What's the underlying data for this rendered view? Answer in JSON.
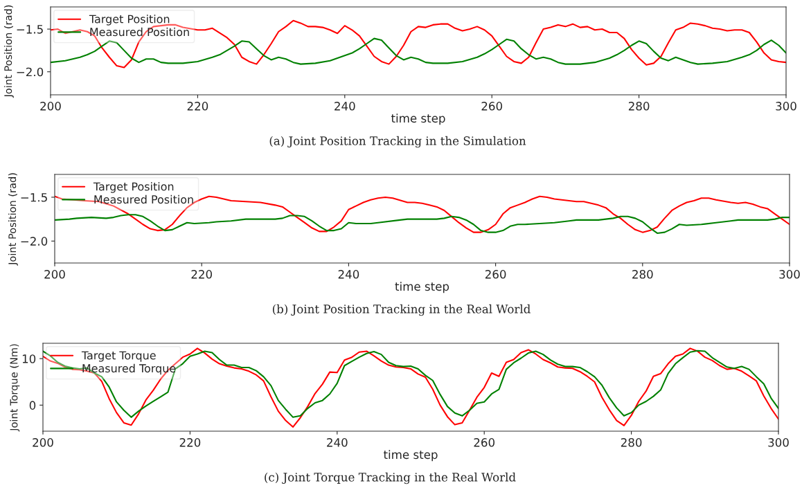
{
  "chart_data": [
    {
      "type": "line",
      "xlabel": "time step",
      "ylabel": "Joint Position (rad)",
      "annotations": [
        "(a) Joint Position Tracking in the Simulation"
      ],
      "xlim": [
        200,
        300
      ],
      "xticks": [
        200,
        220,
        240,
        260,
        280,
        300
      ],
      "ylim": [
        -2.27,
        -1.24
      ],
      "yticks": [
        -1.5,
        {
          "value": -2.0,
          "label": "−2.0"
        }
      ],
      "grid": false,
      "legend": "top left",
      "line_style": "solid",
      "marker": "none",
      "series": [
        {
          "name": "Target Position",
          "color": "#ff0000",
          "x": [
            200,
            201,
            202,
            204,
            205,
            206,
            207,
            208,
            209,
            210,
            211,
            212,
            213,
            214,
            216,
            217,
            218,
            220,
            221,
            222,
            224,
            225,
            226,
            227,
            228,
            229,
            230,
            231,
            232,
            233,
            234,
            235,
            236,
            237,
            238,
            239,
            240,
            241,
            242,
            243,
            244,
            245,
            246,
            247,
            248,
            249,
            250,
            251,
            252,
            253,
            254,
            255,
            256,
            257,
            258,
            259,
            260,
            261,
            262,
            263,
            264,
            265,
            266,
            267,
            268,
            269,
            270,
            271,
            272,
            273,
            274,
            275,
            276,
            277,
            278,
            279,
            280,
            281,
            282,
            283,
            284,
            285,
            286,
            287,
            288,
            289,
            290,
            291,
            292,
            293,
            294,
            295,
            296,
            297,
            298,
            299,
            300
          ],
          "values": [
            -1.51,
            -1.5,
            -1.55,
            -1.51,
            -1.53,
            -1.58,
            -1.72,
            -1.83,
            -1.93,
            -1.95,
            -1.86,
            -1.65,
            -1.53,
            -1.47,
            -1.45,
            -1.45,
            -1.48,
            -1.51,
            -1.51,
            -1.49,
            -1.6,
            -1.68,
            -1.83,
            -1.88,
            -1.91,
            -1.8,
            -1.67,
            -1.53,
            -1.47,
            -1.4,
            -1.43,
            -1.47,
            -1.47,
            -1.48,
            -1.51,
            -1.55,
            -1.46,
            -1.51,
            -1.58,
            -1.7,
            -1.82,
            -1.88,
            -1.91,
            -1.82,
            -1.69,
            -1.53,
            -1.47,
            -1.48,
            -1.45,
            -1.44,
            -1.44,
            -1.49,
            -1.52,
            -1.5,
            -1.47,
            -1.51,
            -1.58,
            -1.7,
            -1.82,
            -1.88,
            -1.9,
            -1.83,
            -1.66,
            -1.5,
            -1.48,
            -1.45,
            -1.47,
            -1.44,
            -1.48,
            -1.47,
            -1.51,
            -1.5,
            -1.54,
            -1.54,
            -1.61,
            -1.74,
            -1.84,
            -1.92,
            -1.9,
            -1.82,
            -1.66,
            -1.51,
            -1.48,
            -1.43,
            -1.44,
            -1.46,
            -1.49,
            -1.5,
            -1.52,
            -1.51,
            -1.51,
            -1.54,
            -1.65,
            -1.78,
            -1.86,
            -1.88,
            -1.89
          ]
        },
        {
          "name": "Measured Position",
          "color": "#008000",
          "x": [
            200,
            202,
            204,
            205,
            206,
            207,
            208,
            209,
            210,
            211,
            212,
            213,
            214,
            215,
            216,
            218,
            220,
            222,
            223,
            224,
            225,
            226,
            227,
            228,
            229,
            230,
            231,
            232,
            233,
            234,
            236,
            238,
            240,
            241,
            242,
            243,
            244,
            245,
            246,
            247,
            248,
            249,
            250,
            251,
            252,
            254,
            256,
            258,
            259,
            260,
            261,
            262,
            263,
            264,
            265,
            266,
            267,
            268,
            269,
            270,
            272,
            274,
            276,
            277,
            278,
            279,
            280,
            281,
            282,
            283,
            284,
            285,
            286,
            287,
            288,
            290,
            292,
            294,
            295,
            296,
            297,
            298,
            299,
            300
          ],
          "values": [
            -1.89,
            -1.87,
            -1.83,
            -1.8,
            -1.76,
            -1.7,
            -1.64,
            -1.66,
            -1.75,
            -1.84,
            -1.89,
            -1.85,
            -1.85,
            -1.89,
            -1.9,
            -1.9,
            -1.88,
            -1.83,
            -1.8,
            -1.75,
            -1.7,
            -1.64,
            -1.65,
            -1.73,
            -1.81,
            -1.86,
            -1.83,
            -1.85,
            -1.89,
            -1.91,
            -1.9,
            -1.87,
            -1.81,
            -1.78,
            -1.73,
            -1.67,
            -1.61,
            -1.63,
            -1.72,
            -1.81,
            -1.86,
            -1.83,
            -1.85,
            -1.89,
            -1.9,
            -1.9,
            -1.88,
            -1.83,
            -1.79,
            -1.74,
            -1.68,
            -1.62,
            -1.64,
            -1.73,
            -1.8,
            -1.85,
            -1.83,
            -1.85,
            -1.89,
            -1.91,
            -1.91,
            -1.89,
            -1.84,
            -1.8,
            -1.75,
            -1.69,
            -1.64,
            -1.67,
            -1.76,
            -1.84,
            -1.87,
            -1.83,
            -1.86,
            -1.89,
            -1.91,
            -1.9,
            -1.88,
            -1.83,
            -1.8,
            -1.75,
            -1.68,
            -1.63,
            -1.69,
            -1.78
          ]
        }
      ]
    },
    {
      "type": "line",
      "xlabel": "time step",
      "ylabel": "Joint Position (rad)",
      "annotations": [
        "(b) Joint Position Tracking in the Real World"
      ],
      "xlim": [
        200,
        300
      ],
      "xticks": [
        200,
        220,
        240,
        260,
        280,
        300
      ],
      "ylim": [
        -2.25,
        -1.24
      ],
      "yticks": [
        -1.5,
        {
          "value": -2.0,
          "label": "−2.0"
        }
      ],
      "grid": false,
      "legend": "top left",
      "line_style": "solid",
      "marker": "none",
      "series": [
        {
          "name": "Target Position",
          "color": "#ff0000",
          "x": [
            200,
            201,
            204,
            206,
            208,
            210,
            211,
            212,
            213,
            214,
            215,
            216,
            217,
            218,
            219,
            220,
            221,
            222,
            223,
            224,
            226,
            228,
            230,
            231,
            232,
            233,
            234,
            235,
            236,
            237,
            238,
            239,
            240,
            241,
            242,
            243,
            244,
            245,
            246,
            248,
            249,
            250,
            251,
            252,
            253,
            254,
            255,
            256,
            257,
            258,
            259,
            260,
            261,
            262,
            263,
            264,
            265,
            266,
            267,
            268,
            269,
            270,
            271,
            272,
            273,
            274,
            275,
            276,
            277,
            278,
            279,
            280,
            281,
            282,
            283,
            284,
            285,
            286,
            287,
            288,
            289,
            290,
            292,
            293,
            294,
            295,
            296,
            297,
            298,
            299,
            300
          ],
          "values": [
            -1.49,
            -1.52,
            -1.54,
            -1.55,
            -1.6,
            -1.69,
            -1.75,
            -1.81,
            -1.86,
            -1.88,
            -1.87,
            -1.81,
            -1.71,
            -1.62,
            -1.56,
            -1.52,
            -1.49,
            -1.5,
            -1.52,
            -1.54,
            -1.55,
            -1.56,
            -1.59,
            -1.61,
            -1.67,
            -1.73,
            -1.79,
            -1.85,
            -1.89,
            -1.89,
            -1.84,
            -1.77,
            -1.64,
            -1.6,
            -1.56,
            -1.53,
            -1.51,
            -1.5,
            -1.51,
            -1.56,
            -1.56,
            -1.57,
            -1.59,
            -1.61,
            -1.65,
            -1.72,
            -1.79,
            -1.85,
            -1.9,
            -1.9,
            -1.87,
            -1.81,
            -1.69,
            -1.62,
            -1.59,
            -1.56,
            -1.52,
            -1.49,
            -1.5,
            -1.52,
            -1.53,
            -1.54,
            -1.55,
            -1.55,
            -1.57,
            -1.59,
            -1.62,
            -1.69,
            -1.74,
            -1.81,
            -1.87,
            -1.9,
            -1.88,
            -1.84,
            -1.74,
            -1.65,
            -1.6,
            -1.56,
            -1.54,
            -1.51,
            -1.51,
            -1.53,
            -1.56,
            -1.57,
            -1.56,
            -1.58,
            -1.61,
            -1.63,
            -1.69,
            -1.75,
            -1.81
          ]
        },
        {
          "name": "Measured Position",
          "color": "#008000",
          "x": [
            200,
            202,
            203,
            205,
            207,
            208,
            209,
            210,
            211,
            212,
            213,
            214,
            215,
            216,
            217,
            218,
            219,
            221,
            222,
            224,
            226,
            228,
            230,
            231,
            232,
            233,
            234,
            235,
            236,
            237,
            238,
            239,
            240,
            241,
            243,
            244,
            247,
            248,
            250,
            252,
            253,
            254,
            255,
            256,
            257,
            258,
            259,
            260,
            261,
            262,
            263,
            264,
            266,
            268,
            270,
            271,
            272,
            274,
            275,
            276,
            277,
            278,
            279,
            280,
            281,
            282,
            283,
            284,
            285,
            286,
            288,
            290,
            292,
            293,
            295,
            297,
            298,
            299,
            300
          ],
          "values": [
            -1.76,
            -1.75,
            -1.74,
            -1.73,
            -1.74,
            -1.73,
            -1.71,
            -1.7,
            -1.7,
            -1.72,
            -1.77,
            -1.83,
            -1.88,
            -1.87,
            -1.83,
            -1.79,
            -1.8,
            -1.79,
            -1.78,
            -1.77,
            -1.75,
            -1.75,
            -1.75,
            -1.74,
            -1.71,
            -1.71,
            -1.72,
            -1.77,
            -1.83,
            -1.88,
            -1.88,
            -1.86,
            -1.79,
            -1.8,
            -1.8,
            -1.79,
            -1.76,
            -1.75,
            -1.75,
            -1.75,
            -1.74,
            -1.72,
            -1.73,
            -1.76,
            -1.81,
            -1.88,
            -1.9,
            -1.9,
            -1.88,
            -1.83,
            -1.81,
            -1.81,
            -1.8,
            -1.79,
            -1.77,
            -1.76,
            -1.76,
            -1.76,
            -1.75,
            -1.74,
            -1.72,
            -1.72,
            -1.74,
            -1.78,
            -1.85,
            -1.91,
            -1.9,
            -1.86,
            -1.81,
            -1.82,
            -1.81,
            -1.79,
            -1.77,
            -1.76,
            -1.76,
            -1.76,
            -1.75,
            -1.73,
            -1.73
          ]
        }
      ]
    },
    {
      "type": "line",
      "xlabel": "time step",
      "ylabel": "Joint Torque (Nm)",
      "annotations": [
        "(c) Joint Torque Tracking in the Real World"
      ],
      "xlim": [
        200,
        300
      ],
      "xticks": [
        200,
        220,
        240,
        260,
        280,
        300
      ],
      "ylim": [
        -5.6,
        13.3
      ],
      "yticks": [
        0,
        10
      ],
      "grid": false,
      "legend": "top left",
      "line_style": "solid",
      "marker": "none",
      "series": [
        {
          "name": "Target Torque",
          "color": "#ff0000",
          "x": [
            200,
            201,
            202,
            203,
            204,
            205,
            206,
            207,
            208,
            209,
            210,
            211,
            212,
            213,
            214,
            215,
            216,
            217,
            218,
            219,
            220,
            221,
            222,
            223,
            224,
            225,
            226,
            227,
            228,
            229,
            230,
            231,
            232,
            233,
            234,
            235,
            236,
            237,
            238,
            239,
            240,
            241,
            242,
            243,
            244,
            245,
            246,
            247,
            248,
            249,
            250,
            251,
            252,
            253,
            254,
            255,
            256,
            257,
            258,
            259,
            260,
            261,
            262,
            263,
            264,
            265,
            266,
            267,
            268,
            269,
            270,
            271,
            272,
            273,
            274,
            275,
            276,
            277,
            278,
            279,
            280,
            281,
            282,
            283,
            284,
            285,
            286,
            287,
            288,
            289,
            290,
            291,
            292,
            293,
            294,
            295,
            296,
            297,
            298,
            299,
            300
          ],
          "values": [
            10.5,
            9.5,
            9.0,
            8.2,
            7.7,
            7.6,
            7.3,
            6.9,
            5.1,
            1.4,
            -1.6,
            -3.8,
            -4.3,
            -1.9,
            1.1,
            3.2,
            5.6,
            7.5,
            8.9,
            10.3,
            11.0,
            12.2,
            11.2,
            9.9,
            8.9,
            8.4,
            8.0,
            7.8,
            7.3,
            6.5,
            5.2,
            1.8,
            -1.3,
            -3.3,
            -4.7,
            -2.7,
            -0.3,
            2.5,
            4.5,
            7.1,
            7.0,
            9.7,
            10.3,
            11.4,
            11.6,
            10.6,
            9.5,
            8.6,
            8.2,
            8.1,
            7.8,
            6.7,
            6.0,
            3.4,
            0.0,
            -2.5,
            -4.2,
            -3.8,
            -1.1,
            1.7,
            3.8,
            6.9,
            6.2,
            9.2,
            9.8,
            11.3,
            11.9,
            11.0,
            9.8,
            9.1,
            8.2,
            8.0,
            7.9,
            7.2,
            6.2,
            5.0,
            1.7,
            -1.0,
            -3.3,
            -4.4,
            -2.2,
            0.8,
            3.0,
            6.2,
            6.8,
            8.9,
            10.5,
            11.0,
            12.2,
            11.6,
            10.3,
            9.6,
            8.5,
            7.7,
            7.9,
            7.3,
            6.3,
            5.2,
            2.0,
            -0.7,
            -3.0
          ]
        },
        {
          "name": "Measured Torque",
          "color": "#008000",
          "x": [
            200,
            201,
            202,
            203,
            204,
            205,
            206,
            207,
            208,
            209,
            210,
            211,
            212,
            213,
            214,
            215,
            216,
            217,
            218,
            219,
            220,
            221,
            222,
            223,
            224,
            225,
            226,
            227,
            228,
            229,
            230,
            231,
            232,
            233,
            234,
            235,
            236,
            237,
            238,
            239,
            240,
            241,
            242,
            243,
            244,
            245,
            246,
            247,
            248,
            249,
            250,
            251,
            252,
            253,
            254,
            255,
            256,
            257,
            258,
            259,
            260,
            261,
            262,
            263,
            264,
            265,
            266,
            267,
            268,
            269,
            270,
            271,
            272,
            273,
            274,
            275,
            276,
            277,
            278,
            279,
            280,
            281,
            282,
            283,
            284,
            285,
            286,
            287,
            288,
            289,
            290,
            291,
            292,
            293,
            294,
            295,
            296,
            297,
            298,
            299,
            300
          ],
          "values": [
            11.6,
            10.6,
            9.2,
            8.4,
            8.0,
            7.8,
            8.0,
            6.9,
            6.1,
            3.9,
            0.7,
            -1.1,
            -2.6,
            -1.3,
            -0.2,
            0.8,
            1.8,
            2.8,
            7.8,
            8.9,
            10.5,
            11.0,
            11.6,
            11.3,
            9.8,
            8.6,
            8.6,
            8.1,
            8.1,
            7.4,
            6.1,
            4.2,
            1.0,
            -0.9,
            -2.6,
            -2.3,
            -0.7,
            0.5,
            1.0,
            2.4,
            4.7,
            8.5,
            9.4,
            10.3,
            11.1,
            11.5,
            10.9,
            9.2,
            8.5,
            8.3,
            8.4,
            7.8,
            6.4,
            5.3,
            2.3,
            -0.3,
            -1.7,
            -2.3,
            -1.1,
            0.4,
            0.7,
            2.4,
            3.4,
            7.7,
            9.1,
            10.1,
            11.2,
            11.6,
            10.9,
            9.7,
            8.8,
            8.3,
            8.3,
            8.1,
            7.2,
            6.1,
            4.3,
            1.6,
            -0.6,
            -2.3,
            -1.6,
            0.0,
            0.8,
            1.9,
            3.3,
            6.8,
            8.9,
            10.2,
            11.4,
            11.7,
            11.6,
            10.2,
            9.2,
            8.2,
            7.9,
            8.3,
            7.7,
            6.1,
            4.6,
            1.5,
            -0.7
          ]
        }
      ]
    }
  ]
}
